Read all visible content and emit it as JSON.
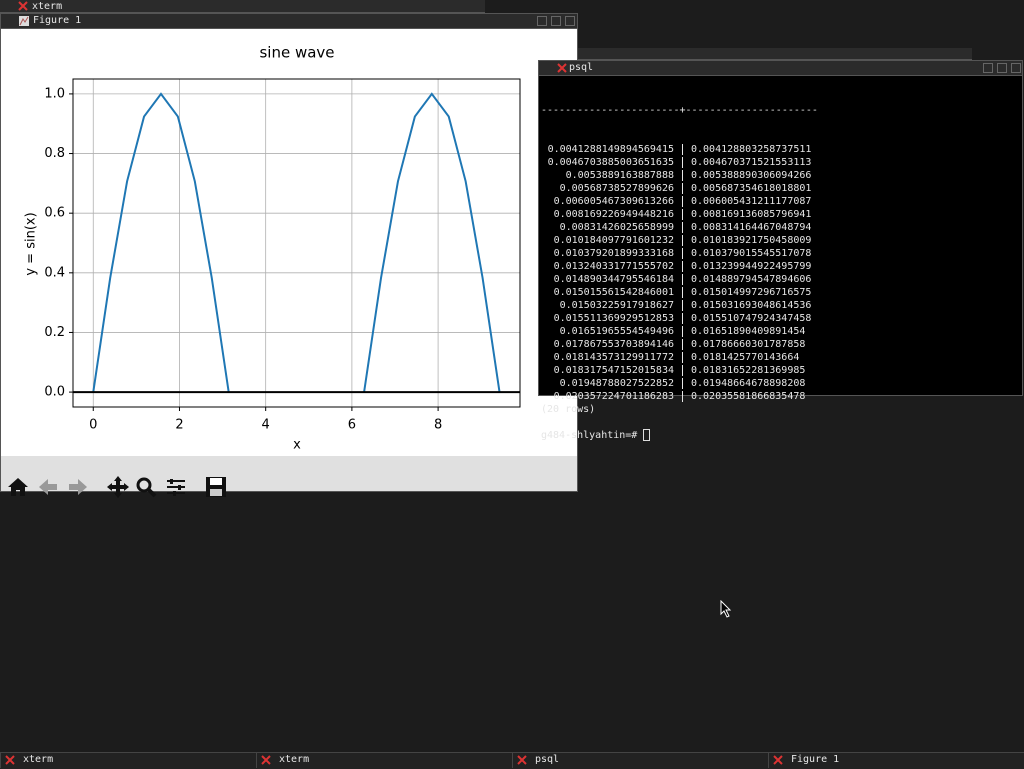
{
  "windows": {
    "xterm_back": {
      "title": "xterm"
    },
    "figure": {
      "title": "Figure 1"
    },
    "psql": {
      "title": "psql",
      "separator": "-----------------------+----------------------",
      "rows": [
        [
          "0.0041288149894569415",
          "0.004128803258737511"
        ],
        [
          "0.0046703885003651635",
          "0.004670371521553113"
        ],
        [
          "0.0053889163887888",
          "0.005388890306094266"
        ],
        [
          "0.00568738527899626",
          "0.005687354618018801"
        ],
        [
          "0.006005467309613266",
          "0.006005431211177087"
        ],
        [
          "0.008169226949448216",
          "0.008169136085796941"
        ],
        [
          "0.00831426025658999",
          "0.008314164467048794"
        ],
        [
          "0.010184097791601232",
          "0.010183921750458009"
        ],
        [
          "0.010379201899333168",
          "0.010379015545517078"
        ],
        [
          "0.013240331771555702",
          "0.013239944922495799"
        ],
        [
          "0.014890344795546184",
          "0.014889794547894606"
        ],
        [
          "0.015015561542846001",
          "0.015014997296716575"
        ],
        [
          "0.01503225917918627",
          "0.015031693048614536"
        ],
        [
          "0.015511369929512853",
          "0.015510747924347458"
        ],
        [
          "0.01651965554549496",
          "0.01651890409891454"
        ],
        [
          "0.017867553703894146",
          "0.01786660301787858"
        ],
        [
          "0.018143573129911772",
          "0.0181425770143664"
        ],
        [
          "0.018317547152015834",
          "0.01831652281369985"
        ],
        [
          "0.01948788027522852",
          "0.01948664678898208"
        ],
        [
          "0.020357224701186283",
          "0.02035581866835478"
        ]
      ],
      "footer": "(20 rows)",
      "prompt": "g484-shlyahtin=#"
    }
  },
  "taskbar": [
    "xterm",
    "xterm",
    "psql",
    "Figure 1"
  ],
  "chart_data": {
    "type": "line",
    "title": "sine wave",
    "x_label": "x",
    "y_label": "y = sin(x)",
    "x": [
      0,
      0.393,
      0.785,
      1.178,
      1.571,
      1.963,
      2.356,
      2.749,
      3.142,
      4.712,
      6.283,
      6.676,
      7.069,
      7.461,
      7.854,
      8.247,
      8.639,
      9.032,
      9.425
    ],
    "values": [
      0,
      0.383,
      0.707,
      0.924,
      1,
      0.924,
      0.707,
      0.383,
      0,
      null,
      0,
      0.383,
      0.707,
      0.924,
      1,
      0.924,
      0.707,
      0.383,
      0
    ],
    "color": "#1f77b4",
    "hline": {
      "y": 0,
      "color": "#000000"
    },
    "xlim": [
      -0.47,
      9.9
    ],
    "ylim": [
      -0.05,
      1.05
    ],
    "xticks": [
      0,
      2,
      4,
      6,
      8
    ],
    "yticks": [
      {
        "value": 0,
        "label": "0.0"
      },
      {
        "value": 0.2,
        "label": "0.2"
      },
      {
        "value": 0.4,
        "label": "0.4"
      },
      {
        "value": 0.6,
        "label": "0.6"
      },
      {
        "value": 0.8,
        "label": "0.8"
      },
      {
        "value": 1,
        "label": "1.0"
      }
    ],
    "grid": true
  }
}
